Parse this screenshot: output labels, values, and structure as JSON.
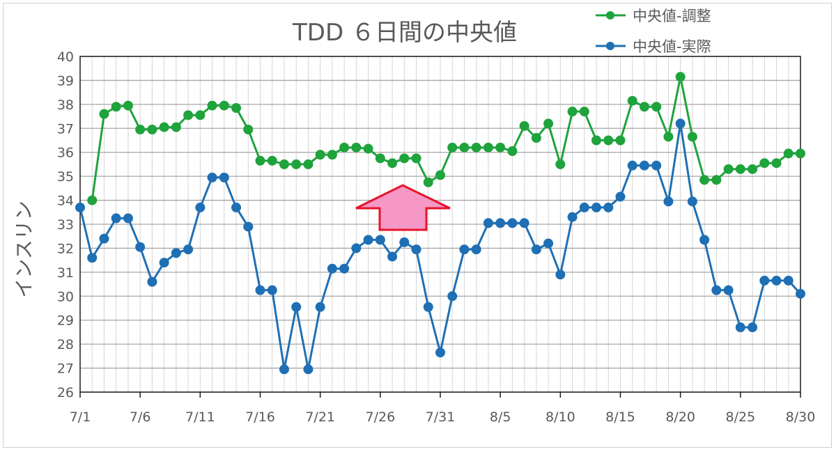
{
  "chart_data": {
    "type": "line",
    "title": "TDD ６日間の中央値",
    "ylabel": "インスリン",
    "xlabel": "",
    "ylim": [
      26,
      40
    ],
    "yticks": [
      26,
      27,
      28,
      29,
      30,
      31,
      32,
      33,
      34,
      35,
      36,
      37,
      38,
      39,
      40
    ],
    "grid": true,
    "legend_position": "top-right",
    "x": [
      "7/1",
      "7/2",
      "7/3",
      "7/4",
      "7/5",
      "7/6",
      "7/7",
      "7/8",
      "7/9",
      "7/10",
      "7/11",
      "7/12",
      "7/13",
      "7/14",
      "7/15",
      "7/16",
      "7/17",
      "7/18",
      "7/19",
      "7/20",
      "7/21",
      "7/22",
      "7/23",
      "7/24",
      "7/25",
      "7/26",
      "7/27",
      "7/28",
      "7/29",
      "7/30",
      "7/31",
      "8/1",
      "8/2",
      "8/3",
      "8/4",
      "8/5",
      "8/6",
      "8/7",
      "8/8",
      "8/9",
      "8/10",
      "8/11",
      "8/12",
      "8/13",
      "8/14",
      "8/15",
      "8/16",
      "8/17",
      "8/18",
      "8/19",
      "8/20",
      "8/21",
      "8/22",
      "8/23",
      "8/24",
      "8/25",
      "8/26",
      "8/27",
      "8/28",
      "8/29",
      "8/30"
    ],
    "x_tick_labels": [
      "7/1",
      "7/6",
      "7/11",
      "7/16",
      "7/21",
      "7/26",
      "7/31",
      "8/5",
      "8/10",
      "8/15",
      "8/20",
      "8/25",
      "8/30"
    ],
    "series": [
      {
        "name": "中央値-調整",
        "color": "#1fa33c",
        "values": [
          null,
          34.0,
          37.6,
          37.9,
          37.95,
          36.95,
          36.95,
          37.05,
          37.05,
          37.55,
          37.55,
          37.95,
          37.95,
          37.85,
          36.95,
          35.65,
          35.65,
          35.5,
          35.5,
          35.5,
          35.9,
          35.9,
          36.2,
          36.2,
          36.15,
          35.75,
          35.55,
          35.75,
          35.75,
          34.75,
          35.05,
          36.2,
          36.2,
          36.2,
          36.2,
          36.2,
          36.05,
          37.1,
          36.6,
          37.2,
          35.5,
          37.7,
          37.7,
          36.5,
          36.5,
          36.5,
          38.15,
          37.9,
          37.9,
          36.65,
          39.15,
          36.65,
          34.85,
          34.85,
          35.3,
          35.3,
          35.3,
          35.55,
          35.55,
          35.95,
          35.95
        ]
      },
      {
        "name": "中央値-実際",
        "color": "#1f6fb4",
        "values": [
          33.7,
          31.6,
          32.4,
          33.25,
          33.25,
          32.05,
          30.6,
          31.4,
          31.8,
          31.95,
          33.7,
          34.95,
          34.95,
          33.7,
          32.9,
          30.25,
          30.25,
          26.95,
          29.55,
          26.95,
          29.55,
          31.15,
          31.15,
          32.0,
          32.35,
          32.35,
          31.65,
          32.25,
          31.95,
          29.55,
          27.65,
          30.0,
          31.95,
          31.95,
          33.05,
          33.05,
          33.05,
          33.05,
          31.95,
          32.2,
          30.9,
          33.3,
          33.7,
          33.7,
          33.7,
          34.15,
          35.45,
          35.45,
          35.45,
          33.95,
          37.2,
          33.95,
          32.35,
          30.25,
          30.25,
          28.7,
          28.7,
          30.65,
          30.65,
          30.65,
          30.1
        ]
      }
    ],
    "annotation": {
      "type": "up-arrow",
      "color": "#f598c6",
      "stroke": "#e8132a"
    }
  }
}
